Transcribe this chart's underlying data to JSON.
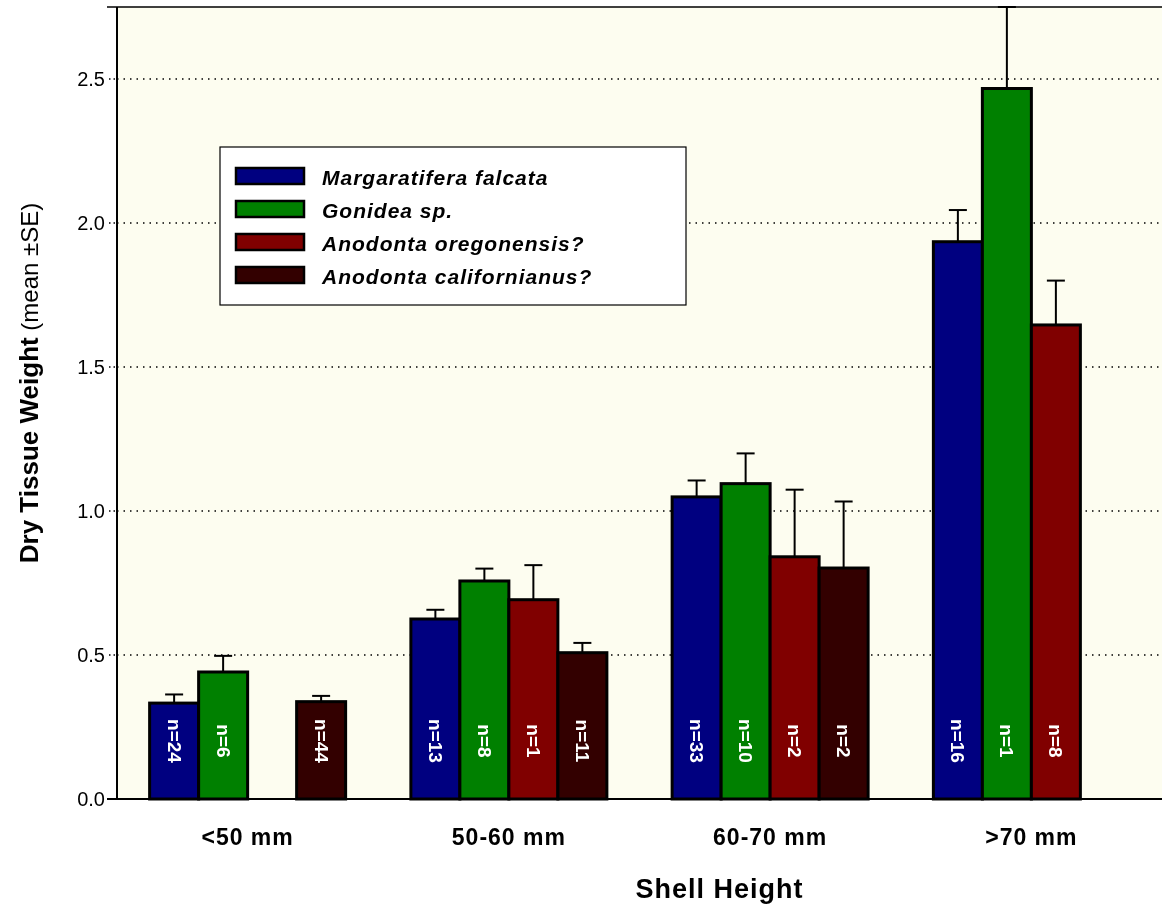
{
  "chart_data": {
    "type": "bar",
    "xlabel": "Shell Height",
    "ylabel": "Dry Tissue Weight (mean ±SE)",
    "categories": [
      "<50 mm",
      "50-60 mm",
      "60-70 mm",
      ">70 mm"
    ],
    "series": [
      {
        "name": "Margaratifera falcata",
        "color": "#000080",
        "values": [
          0.333,
          0.625,
          1.049,
          1.935
        ],
        "errors": [
          0.03,
          0.032,
          0.057,
          0.11
        ]
      },
      {
        "name": "Gonidea sp.",
        "color": "#008000",
        "values": [
          0.441,
          0.757,
          1.095,
          2.467
        ],
        "errors": [
          0.056,
          0.043,
          0.105,
          0.283
        ]
      },
      {
        "name": "Anodonta oregonensis?",
        "color": "#800000",
        "values": [
          null,
          0.692,
          0.841,
          1.646
        ],
        "errors": [
          null,
          0.12,
          0.233,
          0.154
        ]
      },
      {
        "name": "Anodonta californianus?",
        "color": "#330000",
        "values": [
          0.338,
          0.508,
          0.802,
          null
        ],
        "errors": [
          0.02,
          0.034,
          0.231,
          null
        ]
      }
    ],
    "annotations": [
      "n=24",
      "n=6",
      "n=44",
      "n=13",
      "n=8",
      "n=1",
      "n=11",
      "n=33",
      "n=10",
      "n=2",
      "n=2",
      "n=16",
      "n=1",
      "n=8"
    ],
    "ylim": [
      0,
      2.75
    ],
    "yticks": [
      {
        "value": 0,
        "label": "0.0"
      },
      {
        "value": 0.5,
        "label": "0.5"
      },
      {
        "value": 1,
        "label": "1.0"
      },
      {
        "value": 1.5,
        "label": "1.5"
      },
      {
        "value": 2,
        "label": "2.0"
      },
      {
        "value": 2.5,
        "label": "2.5"
      }
    ],
    "grid": "y",
    "legend": "top left"
  }
}
